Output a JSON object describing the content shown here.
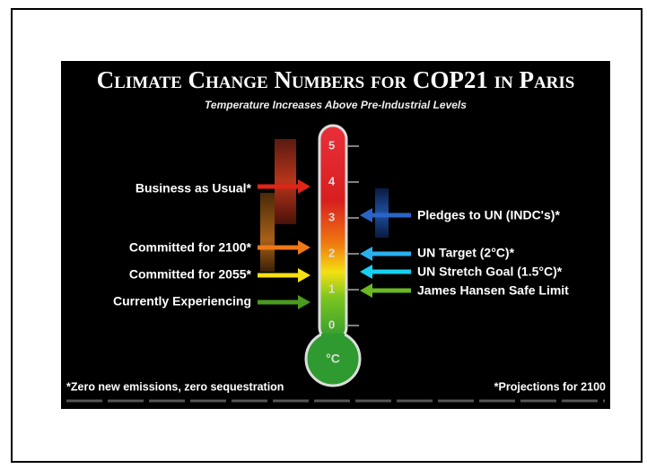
{
  "infographic": {
    "title": "Climate Change Numbers for COP21 in Paris",
    "subtitle": "Temperature Increases Above Pre-Industrial Levels",
    "scale": [
      "5",
      "4",
      "3",
      "2",
      "1",
      "0"
    ],
    "unit": "°C",
    "left_labels": [
      "Business as Usual*",
      "Committed for 2100*",
      "Committed for 2055*",
      "Currently Experiencing"
    ],
    "right_labels": [
      "Pledges to UN (INDC's)*",
      "UN Target (2°C)*",
      "UN Stretch Goal (1.5°C)*",
      "James Hansen Safe Limit"
    ],
    "footnote_left": "*Zero new emissions, zero sequestration",
    "footnote_right": "*Projections for 2100"
  }
}
